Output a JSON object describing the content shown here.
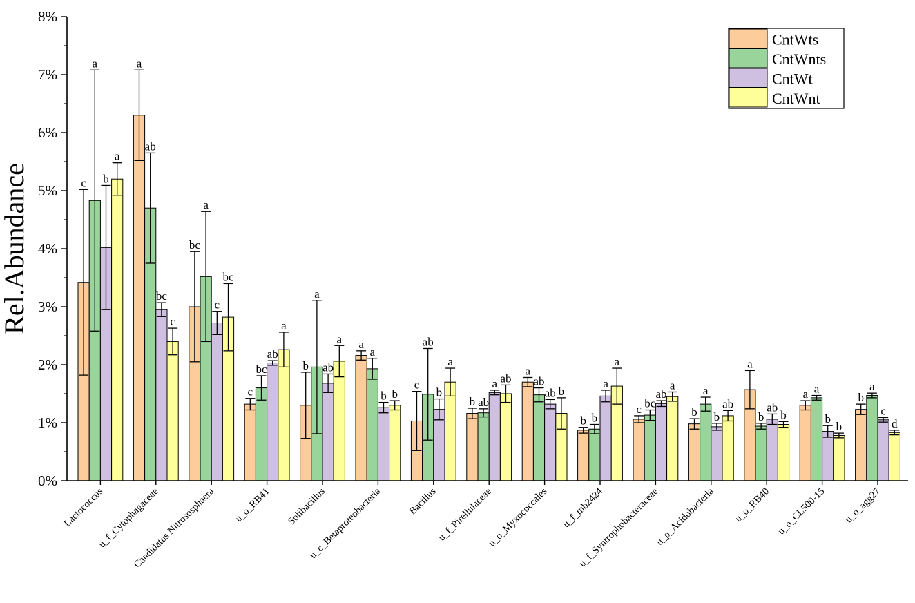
{
  "chart_data": {
    "type": "bar",
    "title": "",
    "xlabel": "",
    "ylabel": "Rel.Abundance",
    "ylim": [
      0,
      8
    ],
    "yticks": [
      "0%",
      "1%",
      "2%",
      "3%",
      "4%",
      "5%",
      "6%",
      "7%",
      "8%"
    ],
    "legend_position": "top-right",
    "categories": [
      "Lactococcus",
      "u_f_Cytophagaceae",
      "Candidatus Nitrososphaera",
      "u_o_RB41",
      "Solibacillus",
      "u_c_Betaproteobacteria",
      "Bacillus",
      "u_f_Pirellulaceae",
      "u_o_Myxococcales",
      "u_f_mb2424",
      "u_f_Syntrophobacteraceae",
      "u_p_Acidobacteria",
      "u_o_RB40",
      "u_o_CL500-15",
      "u_o_agg27"
    ],
    "series": [
      {
        "name": "CntWts",
        "color": "#FCCD9A",
        "values": [
          3.42,
          6.3,
          3.0,
          1.32,
          1.3,
          2.16,
          1.03,
          1.16,
          1.7,
          0.87,
          1.06,
          0.98,
          1.57,
          1.3,
          1.23
        ],
        "errors": [
          1.6,
          0.78,
          0.95,
          0.1,
          0.57,
          0.08,
          0.51,
          0.09,
          0.08,
          0.05,
          0.06,
          0.09,
          0.33,
          0.08,
          0.09
        ],
        "letters": [
          "c",
          "a",
          "bc",
          "c",
          "b",
          "a",
          "c",
          "b",
          "a",
          "b",
          "c",
          "b",
          "a",
          "a",
          "b"
        ]
      },
      {
        "name": "CntWnts",
        "color": "#99D59B",
        "values": [
          4.83,
          4.7,
          3.52,
          1.6,
          1.96,
          1.93,
          1.49,
          1.17,
          1.48,
          0.89,
          1.13,
          1.32,
          0.94,
          1.43,
          1.47
        ],
        "errors": [
          2.25,
          0.95,
          1.12,
          0.21,
          1.15,
          0.18,
          0.79,
          0.07,
          0.12,
          0.08,
          0.09,
          0.12,
          0.05,
          0.04,
          0.04
        ],
        "letters": [
          "a",
          "ab",
          "a",
          "bc",
          "a",
          "a",
          "ab",
          "ab",
          "ab",
          "b",
          "bc",
          "a",
          "b",
          "a",
          "a"
        ]
      },
      {
        "name": "CntWt",
        "color": "#CFBFE1",
        "values": [
          4.02,
          2.95,
          2.72,
          2.03,
          1.68,
          1.26,
          1.23,
          1.52,
          1.32,
          1.46,
          1.33,
          0.93,
          1.06,
          0.85,
          1.05
        ],
        "errors": [
          1.07,
          0.12,
          0.2,
          0.04,
          0.16,
          0.09,
          0.18,
          0.04,
          0.08,
          0.1,
          0.05,
          0.06,
          0.09,
          0.1,
          0.04
        ],
        "letters": [
          "b",
          "bc",
          "c",
          "ab",
          "ab",
          "b",
          "b",
          "a",
          "ab",
          "a",
          "ab",
          "b",
          "ab",
          "b",
          "c"
        ]
      },
      {
        "name": "CntWnt",
        "color": "#FFFF99",
        "values": [
          5.2,
          2.4,
          2.82,
          2.26,
          2.06,
          1.3,
          1.7,
          1.5,
          1.16,
          1.63,
          1.45,
          1.12,
          0.97,
          0.78,
          0.83
        ],
        "errors": [
          0.28,
          0.23,
          0.58,
          0.3,
          0.27,
          0.08,
          0.24,
          0.15,
          0.27,
          0.31,
          0.08,
          0.09,
          0.05,
          0.04,
          0.04
        ],
        "letters": [
          "a",
          "c",
          "bc",
          "a",
          "a",
          "b",
          "a",
          "ab",
          "b",
          "a",
          "a",
          "ab",
          "b",
          "b",
          "d"
        ]
      }
    ]
  }
}
